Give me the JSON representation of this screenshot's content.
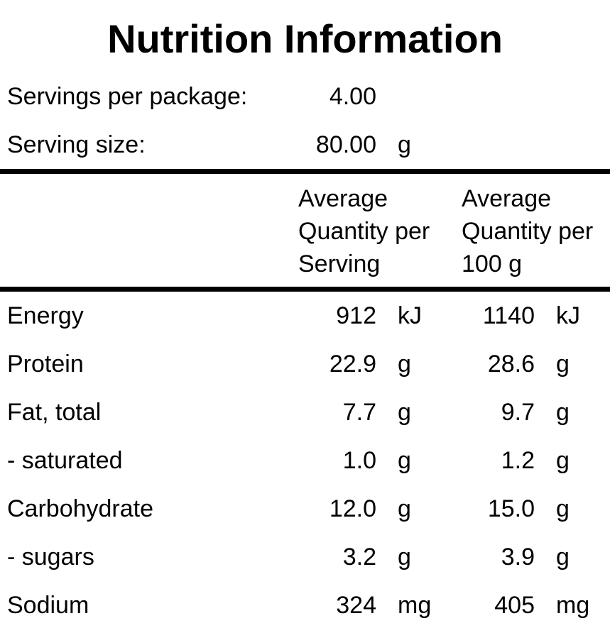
{
  "title": "Nutrition Information",
  "info": {
    "rows": [
      {
        "label": "Servings per package:",
        "value": "4.00",
        "unit": ""
      },
      {
        "label": "Serving size:",
        "value": "80.00",
        "unit": "g"
      }
    ]
  },
  "table": {
    "column_headers": [
      {
        "lines": [
          "Average",
          "Quantity per",
          "Serving"
        ]
      },
      {
        "lines": [
          "Average",
          "Quantity per",
          "100 g"
        ]
      }
    ],
    "rows": [
      {
        "nutrient": "Energy",
        "per_serving": "912",
        "per_serving_unit": "kJ",
        "per_100g": "1140",
        "per_100g_unit": "kJ"
      },
      {
        "nutrient": "Protein",
        "per_serving": "22.9",
        "per_serving_unit": "g",
        "per_100g": "28.6",
        "per_100g_unit": "g"
      },
      {
        "nutrient": "Fat, total",
        "per_serving": "7.7",
        "per_serving_unit": "g",
        "per_100g": "9.7",
        "per_100g_unit": "g"
      },
      {
        "nutrient": "- saturated",
        "per_serving": "1.0",
        "per_serving_unit": "g",
        "per_100g": "1.2",
        "per_100g_unit": "g"
      },
      {
        "nutrient": "Carbohydrate",
        "per_serving": "12.0",
        "per_serving_unit": "g",
        "per_100g": "15.0",
        "per_100g_unit": "g"
      },
      {
        "nutrient": "- sugars",
        "per_serving": "3.2",
        "per_serving_unit": "g",
        "per_100g": "3.9",
        "per_100g_unit": "g"
      },
      {
        "nutrient": "Sodium",
        "per_serving": "324",
        "per_serving_unit": "mg",
        "per_100g": "405",
        "per_100g_unit": "mg"
      }
    ]
  },
  "colors": {
    "text": "#000000",
    "background": "#ffffff",
    "rule": "#000000"
  }
}
